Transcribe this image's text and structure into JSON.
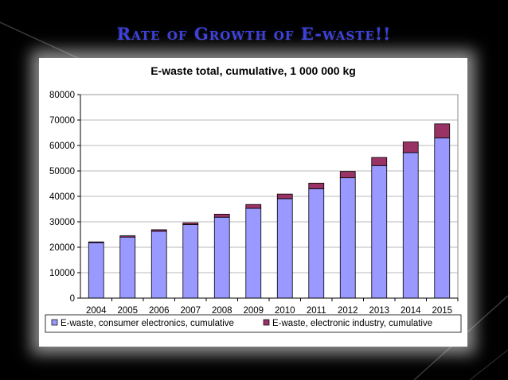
{
  "slide": {
    "title": "Rate of Growth of E-waste!!"
  },
  "colors": {
    "consumer": "#9999ff",
    "industry": "#993366",
    "title": "#3b3fe0",
    "background": "#000000",
    "panel": "#ffffff"
  },
  "chart_data": {
    "type": "bar",
    "stacked": true,
    "title": "E-waste total, cumulative, 1 000 000 kg",
    "xlabel": "",
    "ylabel": "",
    "categories": [
      "2004",
      "2005",
      "2006",
      "2007",
      "2008",
      "2009",
      "2010",
      "2011",
      "2012",
      "2013",
      "2014",
      "2015"
    ],
    "ylim": [
      0,
      80000
    ],
    "yticks": [
      0,
      10000,
      20000,
      30000,
      40000,
      50000,
      60000,
      70000,
      80000
    ],
    "grid": true,
    "legend_position": "bottom",
    "series": [
      {
        "name": "E-waste, consumer electronics, cumulative",
        "color": "#9999ff",
        "values": [
          21800,
          24000,
          26300,
          28900,
          31800,
          35300,
          39100,
          43000,
          47300,
          52100,
          57200,
          63000
        ]
      },
      {
        "name": "E-waste, electronic industry, cumulative",
        "color": "#993366",
        "values": [
          300,
          500,
          600,
          700,
          1200,
          1500,
          1800,
          2200,
          2500,
          3200,
          4200,
          5500
        ]
      }
    ]
  }
}
